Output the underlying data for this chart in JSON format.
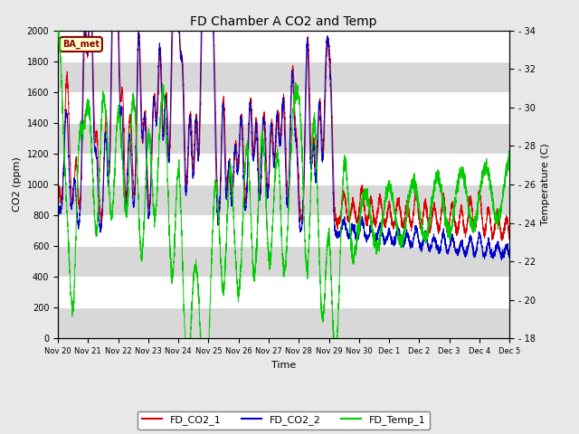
{
  "title": "FD Chamber A CO2 and Temp",
  "xlabel": "Time",
  "ylabel_left": "CO2 (ppm)",
  "ylabel_right": "Temperature (C)",
  "ylim_left": [
    0,
    2000
  ],
  "ylim_right": [
    18,
    34
  ],
  "yticks_left": [
    0,
    200,
    400,
    600,
    800,
    1000,
    1200,
    1400,
    1600,
    1800,
    2000
  ],
  "yticks_right": [
    18,
    20,
    22,
    24,
    26,
    28,
    30,
    32,
    34
  ],
  "annotation_text": "BA_met",
  "annotation_color": "#8b0000",
  "annotation_bg": "#ffffcc",
  "line_co2_1_color": "#dd0000",
  "line_co2_2_color": "#0000cc",
  "line_temp_1_color": "#00cc00",
  "legend_labels": [
    "FD_CO2_1",
    "FD_CO2_2",
    "FD_Temp_1"
  ],
  "bg_color": "#e8e8e8",
  "plot_bg_color": "#ffffff",
  "band_color": "#d8d8d8",
  "grid_color": "#cccccc",
  "tick_label_fontsize": 7,
  "axis_label_fontsize": 8,
  "title_fontsize": 10
}
